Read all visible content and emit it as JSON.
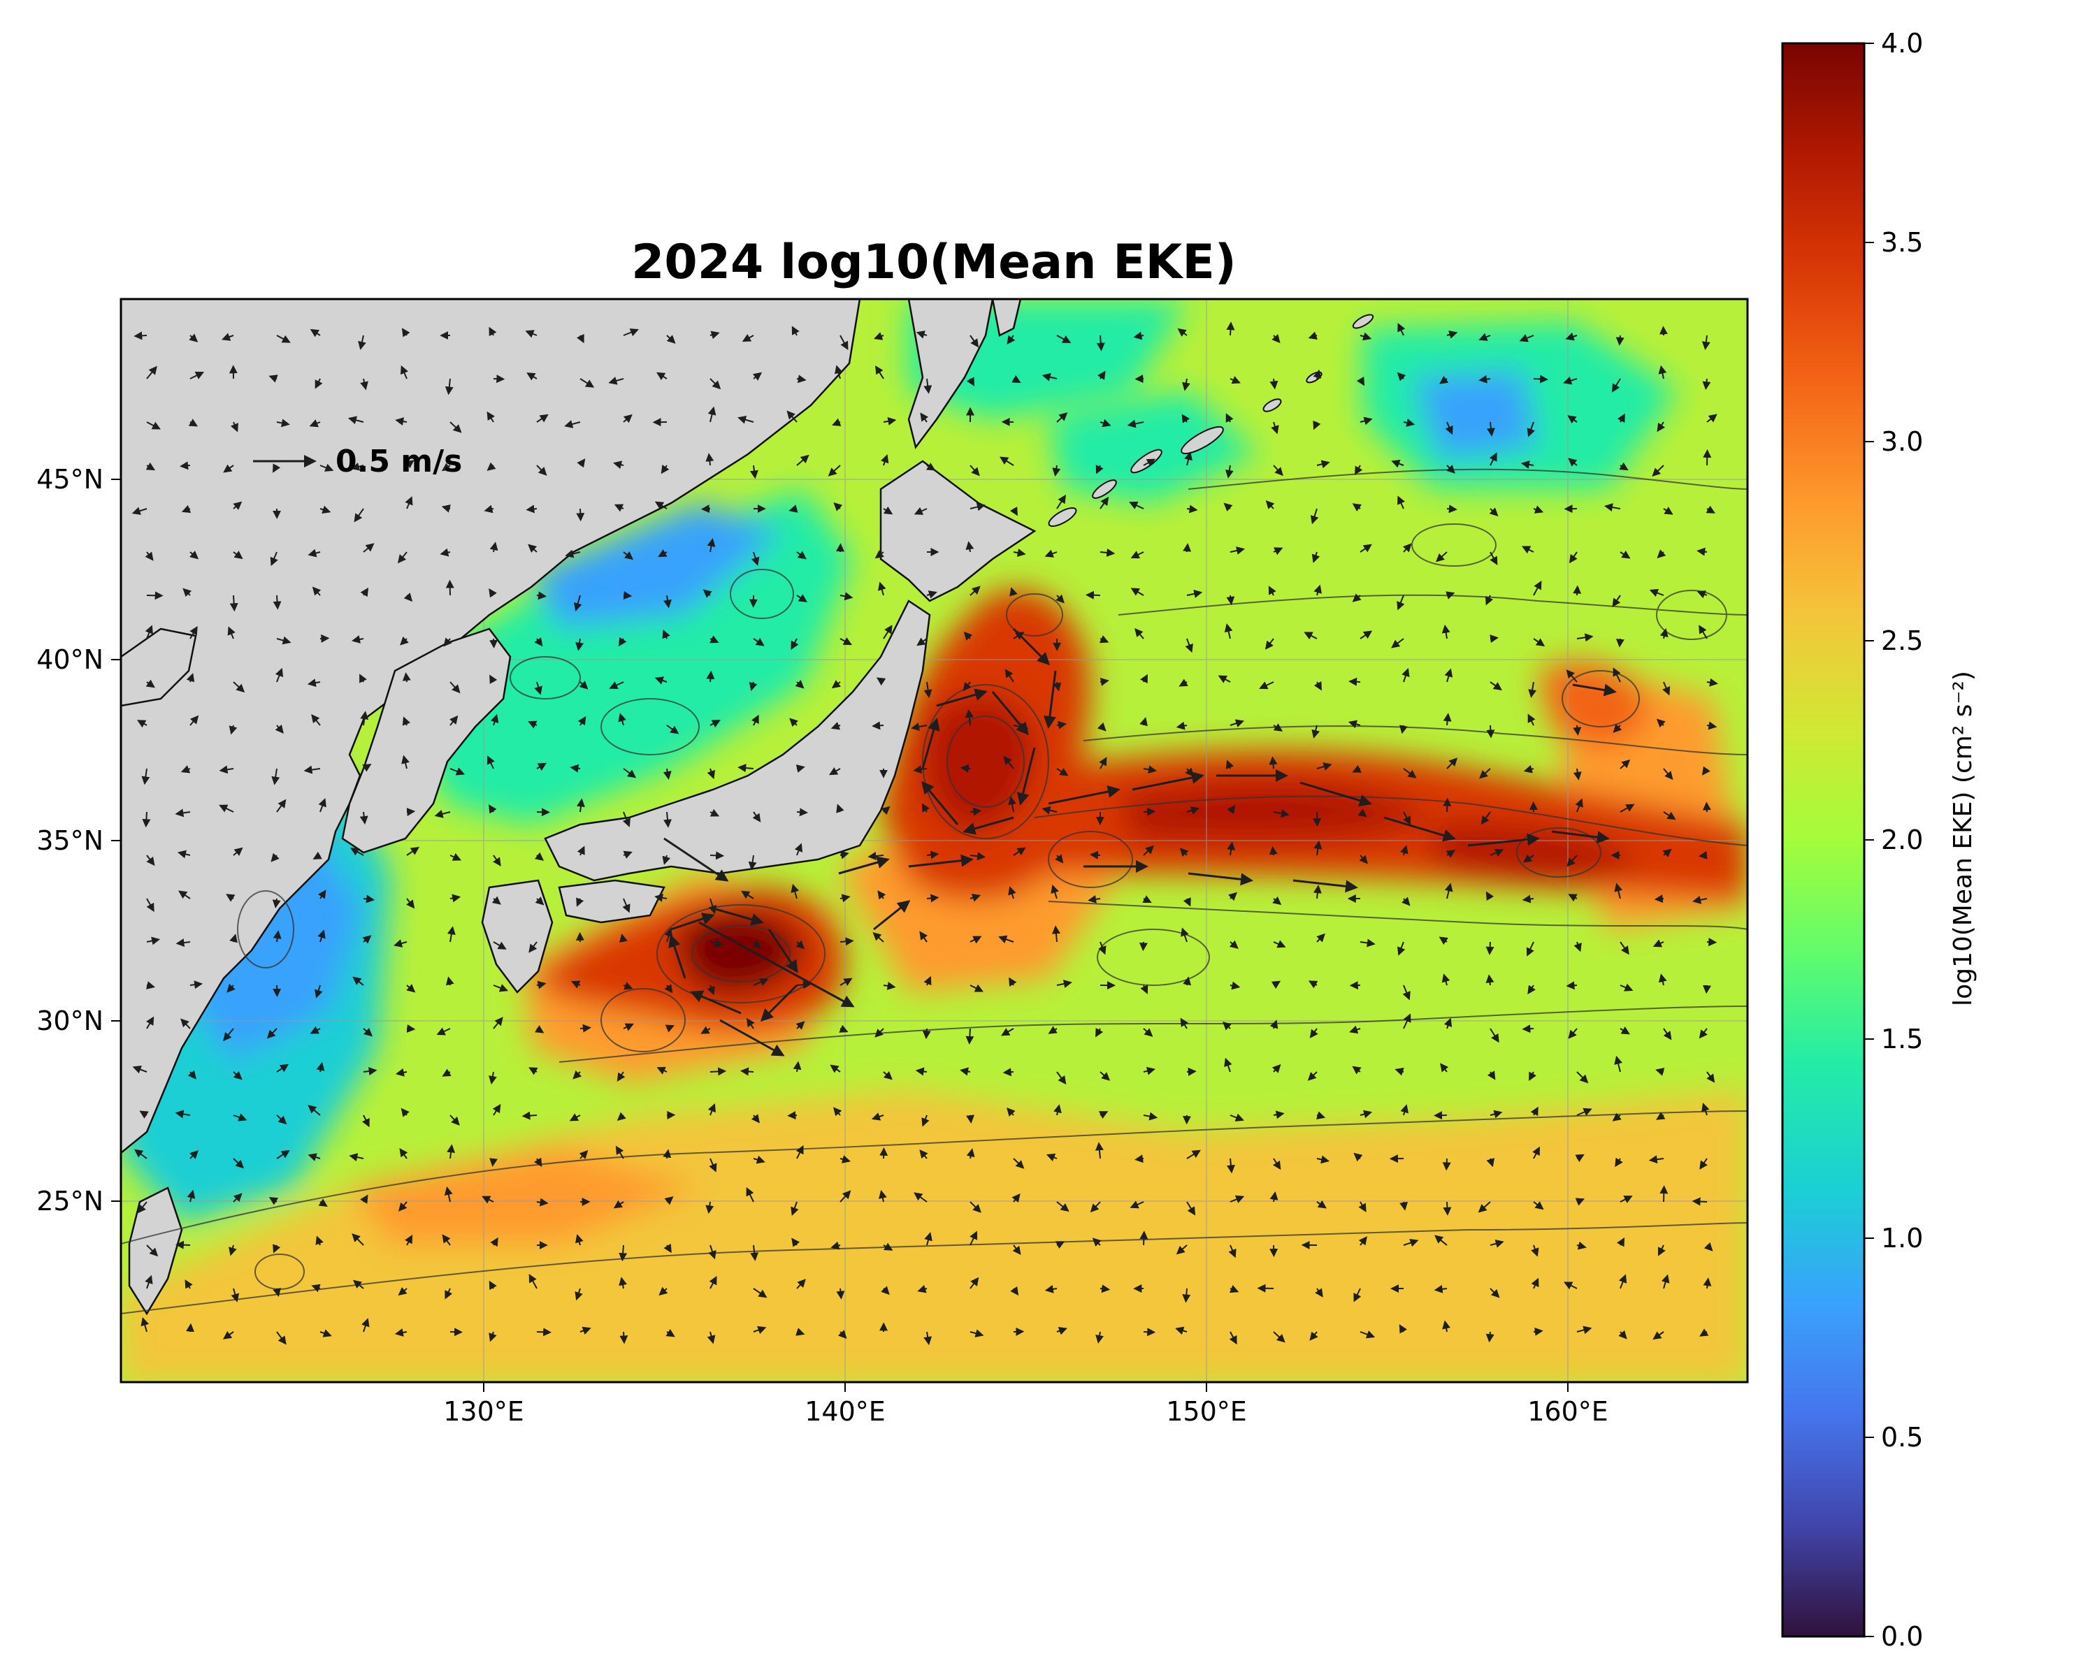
{
  "title": "2024 log10(Mean EKE)",
  "map": {
    "lon_range": [
      120,
      165
    ],
    "lat_range": [
      20,
      50
    ],
    "lon_ticks": [
      {
        "value": 130,
        "label": "130°E"
      },
      {
        "value": 140,
        "label": "140°E"
      },
      {
        "value": 150,
        "label": "150°E"
      },
      {
        "value": 160,
        "label": "160°E"
      }
    ],
    "lat_ticks": [
      {
        "value": 45,
        "label": "45°N"
      },
      {
        "value": 40,
        "label": "40°N"
      },
      {
        "value": 35,
        "label": "35°N"
      },
      {
        "value": 30,
        "label": "30°N"
      },
      {
        "value": 25,
        "label": "25°N"
      }
    ],
    "grid": true,
    "land_color": "#d3d3d3",
    "colormap": "turbo",
    "overlays": [
      "EKE field",
      "streamfunction contours",
      "current vectors"
    ]
  },
  "reference_vector": {
    "label": "0.5 m/s"
  },
  "colorbar": {
    "min": 0.0,
    "max": 4.0,
    "ticks": [
      "0.0",
      "0.5",
      "1.0",
      "1.5",
      "2.0",
      "2.5",
      "3.0",
      "3.5",
      "4.0"
    ],
    "label": "log10(Mean EKE) (cm² s⁻²)"
  },
  "colors": {
    "turbo": [
      "#30123b",
      "#4145ab",
      "#4675ed",
      "#39a2fc",
      "#1bcfd4",
      "#24eca6",
      "#61fc6c",
      "#a4fc3b",
      "#d1e834",
      "#f3c63a",
      "#fe9b2d",
      "#f36315",
      "#d93806",
      "#b11901",
      "#7a0402"
    ]
  }
}
